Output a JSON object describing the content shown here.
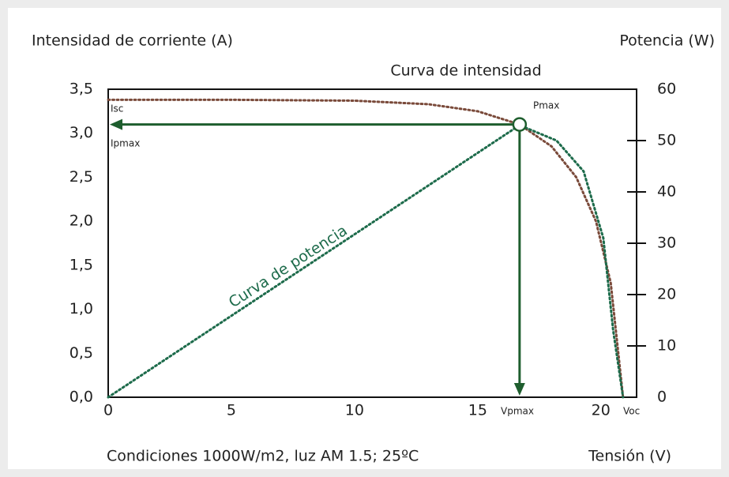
{
  "chart_data": {
    "type": "line",
    "title": "Curva de intensidad",
    "y_label": "Intensidad de corriente (A)",
    "y2_label": "Potencia (W)",
    "x_label": "Tensión (V)",
    "footnote": "Condiciones 1000W/m2, luz AM 1.5; 25ºC",
    "power_label": "Curva de potencia",
    "xlim": [
      0,
      21.45
    ],
    "xticks": [
      0,
      5,
      10,
      15,
      20
    ],
    "ylim": [
      0,
      3.5
    ],
    "yticks": [
      {
        "value": 0,
        "label": "0,0"
      },
      {
        "value": 0.5,
        "label": "0,5"
      },
      {
        "value": 1,
        "label": "1,0"
      },
      {
        "value": 1.5,
        "label": "1,5"
      },
      {
        "value": 2,
        "label": "2,0"
      },
      {
        "value": 2.5,
        "label": "2,5"
      },
      {
        "value": 3,
        "label": "3,0"
      },
      {
        "value": 3.5,
        "label": "3,5"
      }
    ],
    "y2lim": [
      0,
      60
    ],
    "y2ticks": [
      0,
      10,
      20,
      30,
      40,
      50,
      60
    ],
    "series": [
      {
        "name": "Curva de intensidad",
        "color": "#7a4a3a",
        "x": [
          0,
          5,
          10,
          13,
          15,
          16.7,
          18,
          19,
          19.8,
          20.4,
          20.9
        ],
        "values": [
          3.38,
          3.38,
          3.37,
          3.33,
          3.25,
          3.1,
          2.85,
          2.5,
          2.0,
          1.3,
          0
        ]
      },
      {
        "name": "Curva de potencia",
        "color": "#1d6b4b",
        "axis": "y2",
        "x": [
          0,
          16.7,
          18.2,
          19.3,
          20.1,
          20.5,
          20.9
        ],
        "values": [
          0,
          53,
          50,
          44,
          31,
          13,
          0
        ]
      }
    ],
    "point": {
      "x": 16.7,
      "y": 3.1
    },
    "arrow_color": "#1e5e2e",
    "annotations": {
      "isc": "Isc",
      "ipmax": "Ipmax",
      "pmax": "Pmax",
      "vpmax": "Vpmax",
      "voc": "Voc"
    }
  }
}
